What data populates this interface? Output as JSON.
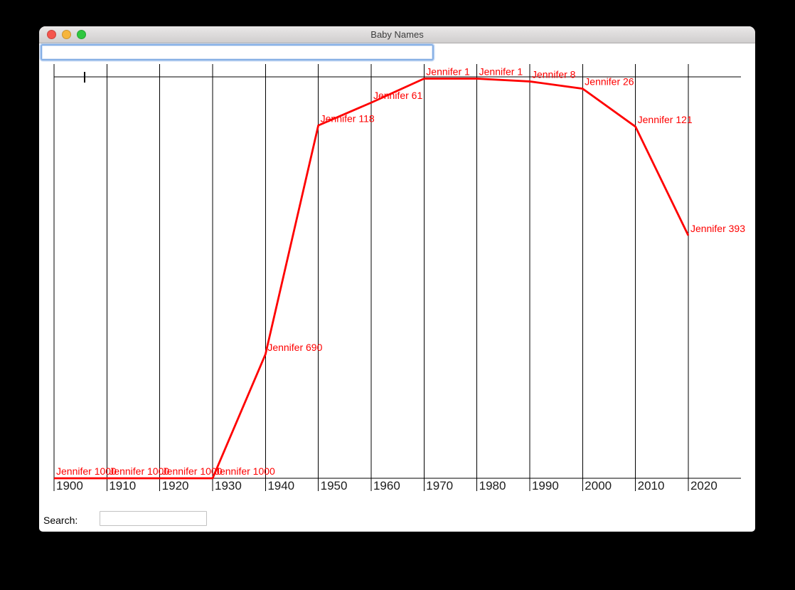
{
  "window": {
    "title": "Baby Names"
  },
  "top_input": {
    "value": ""
  },
  "search": {
    "label": "Search:",
    "value": ""
  },
  "ui_colors": {
    "close_button": "#f5554d",
    "minimize_button": "#f6b53c",
    "zoom_button": "#2ec73f",
    "focus_ring": "#85afe5"
  },
  "chart_data": {
    "type": "line",
    "title": "",
    "xlabel": "",
    "ylabel": "",
    "x": [
      1900,
      1910,
      1920,
      1930,
      1940,
      1950,
      1960,
      1970,
      1980,
      1990,
      2000,
      2010,
      2020
    ],
    "x_tick_labels": [
      "1900",
      "1910",
      "1920",
      "1930",
      "1940",
      "1950",
      "1960",
      "1970",
      "1980",
      "1990",
      "2000",
      "2010",
      "2020"
    ],
    "series": [
      {
        "name": "Jennifer",
        "values": [
          1000,
          1000,
          1000,
          1000,
          690,
          118,
          61,
          1,
          1,
          8,
          26,
          121,
          393
        ]
      }
    ],
    "point_labels": [
      "Jennifer 1000",
      "Jennifer 1000",
      "Jennifer 1000",
      "Jennifer 1000",
      "Jennifer 690",
      "Jennifer 118",
      "Jennifer 61",
      "Jennifer 1",
      "Jennifer 1",
      "Jennifer 8",
      "Jennifer 26",
      "Jennifer 121",
      "Jennifer 393"
    ],
    "y_axis": {
      "top_rank": 1,
      "bottom_rank": 1000,
      "inverted": true
    },
    "grid": true,
    "legend": "none",
    "line_color": "#fe0000",
    "grid_color": "#000000",
    "tick_label_color": "#1c1c1c"
  }
}
